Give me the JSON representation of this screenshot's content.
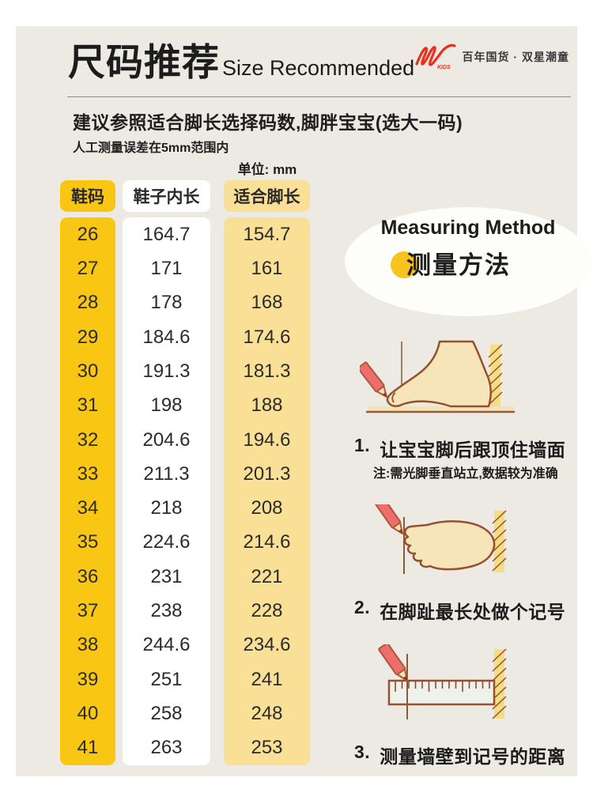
{
  "header": {
    "title_cn": "尺码推荐",
    "title_en": "Size Recommended",
    "brand": {
      "logo_sub": "KIDS",
      "tagline": "百年国货 · 双星潮童"
    }
  },
  "intro": {
    "line1": "建议参照适合脚长选择码数,脚胖宝宝(选大一码)",
    "line2": "人工测量误差在5mm范围内",
    "unit_label": "单位: mm"
  },
  "table": {
    "columns": [
      "鞋码",
      "鞋子内长",
      "适合脚长"
    ],
    "rows": [
      {
        "size": "26",
        "inner": "164.7",
        "foot": "154.7"
      },
      {
        "size": "27",
        "inner": "171",
        "foot": "161"
      },
      {
        "size": "28",
        "inner": "178",
        "foot": "168"
      },
      {
        "size": "29",
        "inner": "184.6",
        "foot": "174.6"
      },
      {
        "size": "30",
        "inner": "191.3",
        "foot": "181.3"
      },
      {
        "size": "31",
        "inner": "198",
        "foot": "188"
      },
      {
        "size": "32",
        "inner": "204.6",
        "foot": "194.6"
      },
      {
        "size": "33",
        "inner": "211.3",
        "foot": "201.3"
      },
      {
        "size": "34",
        "inner": "218",
        "foot": "208"
      },
      {
        "size": "35",
        "inner": "224.6",
        "foot": "214.6"
      },
      {
        "size": "36",
        "inner": "231",
        "foot": "221"
      },
      {
        "size": "37",
        "inner": "238",
        "foot": "228"
      },
      {
        "size": "38",
        "inner": "244.6",
        "foot": "234.6"
      },
      {
        "size": "39",
        "inner": "251",
        "foot": "241"
      },
      {
        "size": "40",
        "inner": "258",
        "foot": "248"
      },
      {
        "size": "41",
        "inner": "263",
        "foot": "253"
      }
    ]
  },
  "measuring": {
    "title_en": "Measuring Method",
    "title_cn": "测量方法",
    "steps": [
      {
        "num": "1.",
        "text": "让宝宝脚后跟顶住墙面",
        "note": "注:需光脚垂直站立,数据较为准确"
      },
      {
        "num": "2.",
        "text": "在脚趾最长处做个记号"
      },
      {
        "num": "3.",
        "text": "测量墙壁到记号的距离"
      }
    ]
  },
  "colors": {
    "card_bg": "#edeae3",
    "gold": "#f9c713",
    "light_yellow": "#f9e096",
    "brand_red": "#e5321e",
    "accent_dot": "#f7c31c",
    "illustration_outline": "#96502f",
    "illustration_fill": "#f5e5b8",
    "wall_yellow": "#f3df83",
    "pencil_red": "#ed6e6c"
  }
}
